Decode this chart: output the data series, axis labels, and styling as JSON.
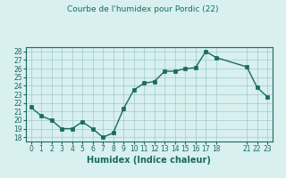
{
  "x": [
    0,
    1,
    2,
    3,
    4,
    5,
    6,
    7,
    8,
    9,
    10,
    11,
    12,
    13,
    14,
    15,
    16,
    17,
    18,
    21,
    22,
    23
  ],
  "y": [
    21.5,
    20.5,
    20.0,
    19.0,
    19.0,
    19.8,
    19.0,
    18.0,
    18.5,
    21.3,
    23.5,
    24.3,
    24.5,
    25.7,
    25.7,
    26.0,
    26.1,
    28.0,
    27.3,
    26.2,
    23.8,
    22.7
  ],
  "title": "Courbe de l'humidex pour Pordic (22)",
  "xlabel": "Humidex (Indice chaleur)",
  "xlim": [
    -0.5,
    23.5
  ],
  "ylim": [
    17.5,
    28.5
  ],
  "yticks": [
    18,
    19,
    20,
    21,
    22,
    23,
    24,
    25,
    26,
    27,
    28
  ],
  "xticks": [
    0,
    1,
    2,
    3,
    4,
    5,
    6,
    7,
    8,
    9,
    10,
    11,
    12,
    13,
    14,
    15,
    16,
    17,
    18,
    21,
    22,
    23
  ],
  "xtick_labels": [
    "0",
    "1",
    "2",
    "3",
    "4",
    "5",
    "6",
    "7",
    "8",
    "9",
    "10",
    "11",
    "12",
    "13",
    "14",
    "15",
    "16",
    "17",
    "18",
    "21",
    "22",
    "23"
  ],
  "line_color": "#1a6b5a",
  "marker_color": "#1a6b5a",
  "bg_color": "#d8f0f0",
  "grid_color": "#a0c8c8",
  "title_color": "#1a6b5a",
  "axis_color": "#1a6b5a",
  "xlabel_color": "#1a6b5a"
}
